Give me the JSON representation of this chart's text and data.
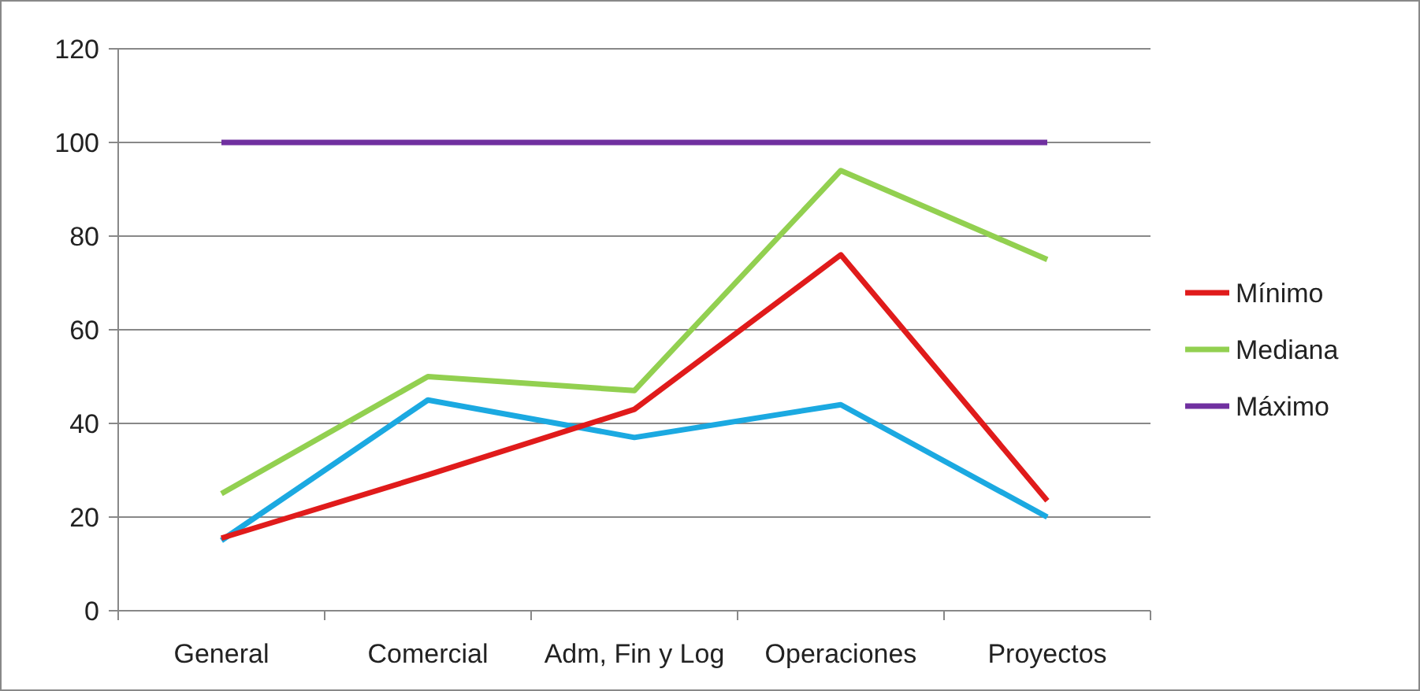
{
  "chart_data": {
    "type": "line",
    "categories": [
      "General",
      "Comercial",
      "Adm, Fin y Log",
      "Operaciones",
      "Proyectos"
    ],
    "series": [
      {
        "color": "#1ba9e1",
        "values": [
          15,
          45,
          37,
          44,
          20
        ]
      },
      {
        "name": "Mínimo",
        "color": "#e01b1b",
        "values": [
          15.5,
          29,
          43,
          76,
          23.5
        ]
      },
      {
        "name": "Mediana",
        "color": "#92d050",
        "values": [
          25,
          50,
          47,
          94,
          75
        ]
      },
      {
        "name": "Máximo",
        "color": "#7030a0",
        "values": [
          100,
          100,
          100,
          100,
          100
        ]
      }
    ],
    "ylim": [
      0,
      120
    ],
    "yticks": [
      0,
      20,
      40,
      60,
      80,
      100,
      120
    ],
    "grid": "y",
    "legend": "right",
    "line_style": "solid",
    "marker": "none"
  }
}
